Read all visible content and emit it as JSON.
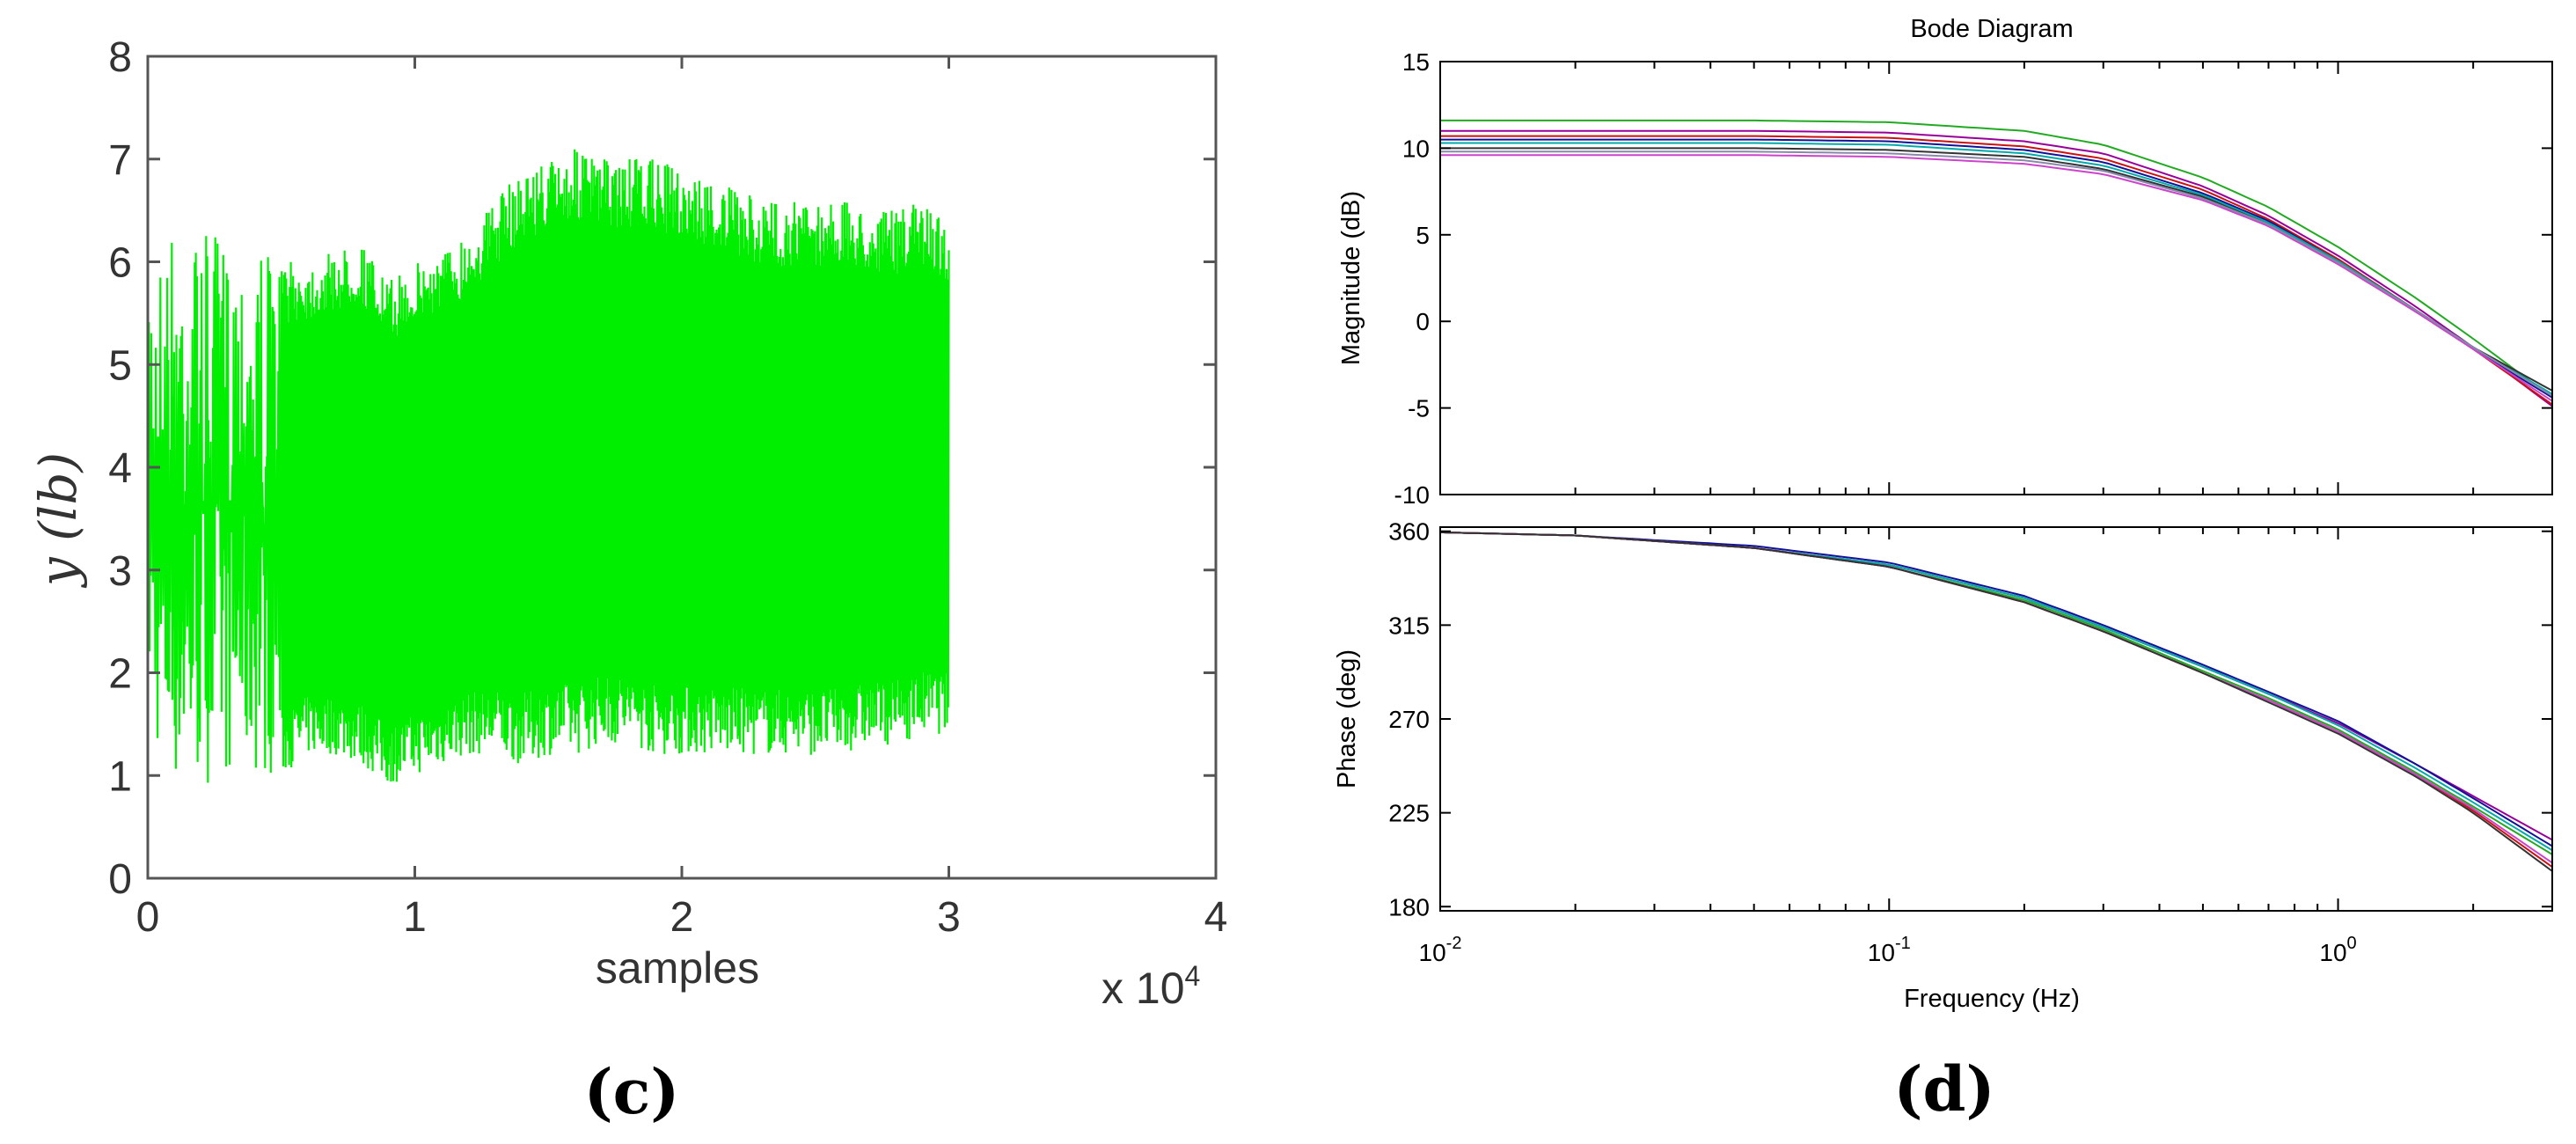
{
  "chart_data": [
    {
      "panel_label": "(c)",
      "type": "line",
      "xlabel": "samples",
      "ylabel": "y (lb)",
      "x_scale_note": "x 10",
      "x_scale_exponent": "4",
      "xlim": [
        0,
        4
      ],
      "ylim": [
        0,
        8
      ],
      "xticks": [
        "0",
        "1",
        "2",
        "3",
        "4"
      ],
      "yticks": [
        "0",
        "1",
        "2",
        "3",
        "4",
        "5",
        "6",
        "7",
        "8"
      ],
      "grid": false,
      "series": [
        {
          "color": "#00ee00",
          "x_range": [
            0,
            3
          ],
          "envelope_x": [
            0,
            0.05,
            0.1,
            0.2,
            0.3,
            0.4,
            0.5,
            0.6,
            0.7,
            0.8,
            0.9,
            1.0,
            1.1,
            1.2,
            1.3,
            1.4,
            1.5,
            1.6,
            1.7,
            1.8,
            1.9,
            2.0,
            2.1,
            2.2,
            2.3,
            2.4,
            2.5,
            2.6,
            2.7,
            2.8,
            2.9,
            3.0
          ],
          "envelope_upper": [
            6.1,
            6.2,
            6.4,
            6.3,
            6.2,
            6.3,
            6.0,
            6.0,
            6.1,
            6.2,
            5.8,
            6.0,
            6.1,
            6.3,
            6.6,
            6.9,
            7.0,
            7.1,
            7.0,
            7.0,
            7.0,
            6.9,
            6.8,
            6.7,
            6.6,
            6.6,
            6.6,
            6.6,
            6.5,
            6.5,
            6.6,
            6.4
          ],
          "envelope_lower": [
            1.8,
            1.0,
            0.9,
            0.9,
            1.0,
            1.0,
            1.0,
            1.2,
            1.2,
            1.1,
            0.9,
            1.0,
            1.1,
            1.2,
            1.2,
            1.1,
            1.2,
            1.2,
            1.3,
            1.3,
            1.2,
            1.2,
            1.2,
            1.2,
            1.2,
            1.2,
            1.2,
            1.2,
            1.3,
            1.3,
            1.4,
            1.4
          ]
        }
      ]
    },
    {
      "panel_label": "(d)",
      "type": "line",
      "title": "Bode Diagram",
      "xlabel": "Frequency  (Hz)",
      "x_scale": "log",
      "xlim": [
        0.01,
        3
      ],
      "xticks": [
        {
          "base": "10",
          "exp": "-2"
        },
        {
          "base": "10",
          "exp": "-1"
        },
        {
          "base": "10",
          "exp": "0"
        }
      ],
      "magnitude": {
        "ylabel": "Magnitude (dB)",
        "ylim": [
          -10,
          15
        ],
        "yticks": [
          "15",
          "10",
          "5",
          "0",
          "-5",
          "-10"
        ],
        "x": [
          0.01,
          0.03,
          0.05,
          0.1,
          0.2,
          0.3,
          0.5,
          0.7,
          1.0,
          1.5,
          2.0,
          3.0
        ],
        "series": [
          {
            "color": "#22aa22",
            "values": [
              11.6,
              11.6,
              11.6,
              11.5,
              11.0,
              10.2,
              8.3,
              6.6,
              4.3,
              1.3,
              -1.0,
              -4.4
            ]
          },
          {
            "color": "#990099",
            "values": [
              11.0,
              11.0,
              11.0,
              10.9,
              10.4,
              9.7,
              7.8,
              6.1,
              3.8,
              0.8,
              -1.5,
              -4.9
            ]
          },
          {
            "color": "#cc1111",
            "values": [
              10.7,
              10.7,
              10.7,
              10.6,
              10.1,
              9.4,
              7.6,
              5.9,
              3.6,
              0.6,
              -1.6,
              -4.8
            ]
          },
          {
            "color": "#111199",
            "values": [
              10.5,
              10.5,
              10.5,
              10.4,
              9.9,
              9.2,
              7.4,
              5.8,
              3.5,
              0.6,
              -1.6,
              -4.4
            ]
          },
          {
            "color": "#00aaaa",
            "values": [
              10.3,
              10.3,
              10.3,
              10.2,
              9.7,
              9.0,
              7.3,
              5.7,
              3.5,
              0.6,
              -1.5,
              -4.2
            ]
          },
          {
            "color": "#333333",
            "values": [
              10.0,
              10.0,
              10.0,
              9.9,
              9.5,
              8.8,
              7.2,
              5.6,
              3.4,
              0.6,
              -1.5,
              -4.0
            ]
          },
          {
            "color": "#cc44cc",
            "values": [
              9.6,
              9.6,
              9.6,
              9.5,
              9.1,
              8.5,
              7.0,
              5.5,
              3.3,
              0.5,
              -1.6,
              -4.6
            ]
          },
          {
            "color": "#8888aa",
            "values": [
              9.8,
              9.8,
              9.8,
              9.7,
              9.3,
              8.7,
              7.1,
              5.6,
              3.4,
              0.6,
              -1.5,
              -4.3
            ]
          }
        ]
      },
      "phase": {
        "ylabel": "Phase (deg)",
        "ylim": [
          178,
          362
        ],
        "yticks": [
          "360",
          "315",
          "270",
          "225",
          "180"
        ],
        "x": [
          0.01,
          0.02,
          0.05,
          0.1,
          0.2,
          0.3,
          0.5,
          0.7,
          1.0,
          1.5,
          2.0,
          3.0
        ],
        "series": [
          {
            "color": "#990099",
            "values": [
              359.5,
              358,
              352,
              344,
              328,
              314,
              295,
              282,
              268,
              248,
              233,
              212
            ]
          },
          {
            "color": "#111199",
            "values": [
              359.5,
              358,
              353,
              345,
              329,
              315,
              296,
              283,
              269,
              248,
              232,
              209
            ]
          },
          {
            "color": "#00aaaa",
            "values": [
              359.5,
              358,
              352,
              344,
              328,
              314,
              295,
              282,
              267,
              246,
              230,
              207
            ]
          },
          {
            "color": "#22aa22",
            "values": [
              359.5,
              358,
              352,
              343,
              327,
              313,
              293,
              280,
              265,
              244,
              228,
              205
            ]
          },
          {
            "color": "#cc1111",
            "values": [
              359.5,
              358,
              352,
              343,
              326,
              312,
              292,
              279,
              264,
              243,
              226,
              199
            ]
          },
          {
            "color": "#cc44cc",
            "values": [
              359.5,
              358,
              352,
              343,
              326,
              312,
              292,
              279,
              264,
              243,
              227,
              201
            ]
          },
          {
            "color": "#333333",
            "values": [
              359.5,
              358,
              352,
              343,
              326,
              312,
              292,
              278,
              263,
              242,
              225,
              197
            ]
          }
        ]
      }
    }
  ]
}
